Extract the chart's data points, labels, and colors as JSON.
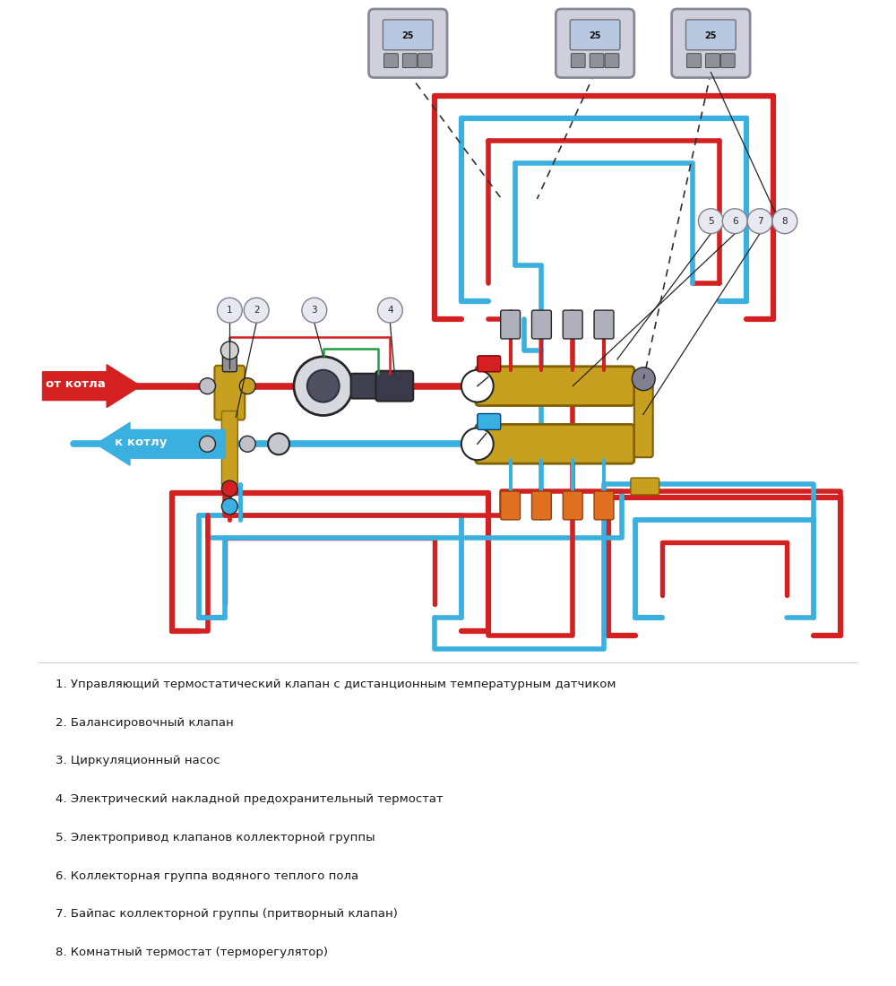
{
  "bg_color": "#ffffff",
  "red_color": "#d42020",
  "blue_color": "#3ab0e0",
  "gold_color": "#c8a020",
  "green_color": "#20a040",
  "dark_color": "#252525",
  "gray_color": "#b0b0b8",
  "light_gray": "#d0d0d8",
  "legend_items": [
    "1. Управляющий термостатический клапан с дистанционным температурным датчиком",
    "2. Балансировочный клапан",
    "3. Циркуляционный насос",
    "4. Электрический накладной предохранительный термостат",
    "5. Электропривод клапанов коллекторной группы",
    "6. Коллекторная группа водяного теплого пола",
    "7. Байпас коллекторной группы (притворный клапан)",
    "8. Комнатный термостат (терморегулятор)"
  ]
}
